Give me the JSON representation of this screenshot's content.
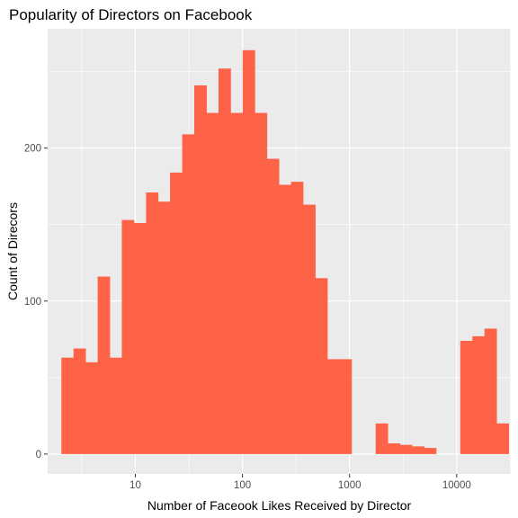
{
  "chart_data": {
    "type": "bar",
    "title": "Popularity of Directors on Facebook",
    "xlabel": "Number of Faceook Likes Received by Director",
    "ylabel": "Count of Direcors",
    "x_scale": "log10",
    "xlim": [
      1.52,
      32000
    ],
    "ylim": [
      -13,
      278
    ],
    "x_ticks": [
      10,
      100,
      1000,
      10000
    ],
    "x_tick_labels": [
      "10",
      "100",
      "1000",
      "10000"
    ],
    "y_ticks": [
      0,
      100,
      200
    ],
    "y_tick_labels": [
      "0",
      "100",
      "200"
    ],
    "grid": true,
    "legend": "none",
    "colors": {
      "bar": "#FF6347",
      "panel": "#EBEBEB",
      "grid": "#FFFFFF"
    },
    "bins": [
      {
        "x0": 2.04,
        "x1": 2.65,
        "count": 63
      },
      {
        "x0": 2.65,
        "x1": 3.43,
        "count": 69
      },
      {
        "x0": 3.43,
        "x1": 4.45,
        "count": 60
      },
      {
        "x0": 4.45,
        "x1": 5.77,
        "count": 116
      },
      {
        "x0": 5.77,
        "x1": 7.48,
        "count": 63
      },
      {
        "x0": 7.48,
        "x1": 9.7,
        "count": 153
      },
      {
        "x0": 9.7,
        "x1": 12.6,
        "count": 151
      },
      {
        "x0": 12.6,
        "x1": 16.3,
        "count": 171
      },
      {
        "x0": 16.3,
        "x1": 21.1,
        "count": 165
      },
      {
        "x0": 21.1,
        "x1": 27.4,
        "count": 184
      },
      {
        "x0": 27.4,
        "x1": 35.5,
        "count": 209
      },
      {
        "x0": 35.5,
        "x1": 46.1,
        "count": 241
      },
      {
        "x0": 46.1,
        "x1": 59.8,
        "count": 223
      },
      {
        "x0": 59.8,
        "x1": 77.5,
        "count": 252
      },
      {
        "x0": 77.5,
        "x1": 100.5,
        "count": 223
      },
      {
        "x0": 100.5,
        "x1": 130.3,
        "count": 264
      },
      {
        "x0": 130.3,
        "x1": 169,
        "count": 223
      },
      {
        "x0": 169,
        "x1": 219,
        "count": 193
      },
      {
        "x0": 219,
        "x1": 284,
        "count": 176
      },
      {
        "x0": 284,
        "x1": 368,
        "count": 178
      },
      {
        "x0": 368,
        "x1": 478,
        "count": 163
      },
      {
        "x0": 478,
        "x1": 620,
        "count": 115
      },
      {
        "x0": 620,
        "x1": 804,
        "count": 62
      },
      {
        "x0": 804,
        "x1": 1042,
        "count": 62
      },
      {
        "x0": 1042,
        "x1": 1351,
        "count": 0
      },
      {
        "x0": 1351,
        "x1": 1752,
        "count": 0
      },
      {
        "x0": 1752,
        "x1": 2272,
        "count": 20
      },
      {
        "x0": 2272,
        "x1": 2946,
        "count": 7
      },
      {
        "x0": 2946,
        "x1": 3820,
        "count": 6
      },
      {
        "x0": 3820,
        "x1": 4954,
        "count": 5
      },
      {
        "x0": 4954,
        "x1": 6424,
        "count": 4
      },
      {
        "x0": 6424,
        "x1": 8330,
        "count": 0
      },
      {
        "x0": 8330,
        "x1": 10802,
        "count": 0
      },
      {
        "x0": 10802,
        "x1": 14007,
        "count": 74
      },
      {
        "x0": 14007,
        "x1": 18163,
        "count": 77
      },
      {
        "x0": 18163,
        "x1": 23553,
        "count": 82
      },
      {
        "x0": 23553,
        "x1": 30543,
        "count": 20
      }
    ]
  }
}
